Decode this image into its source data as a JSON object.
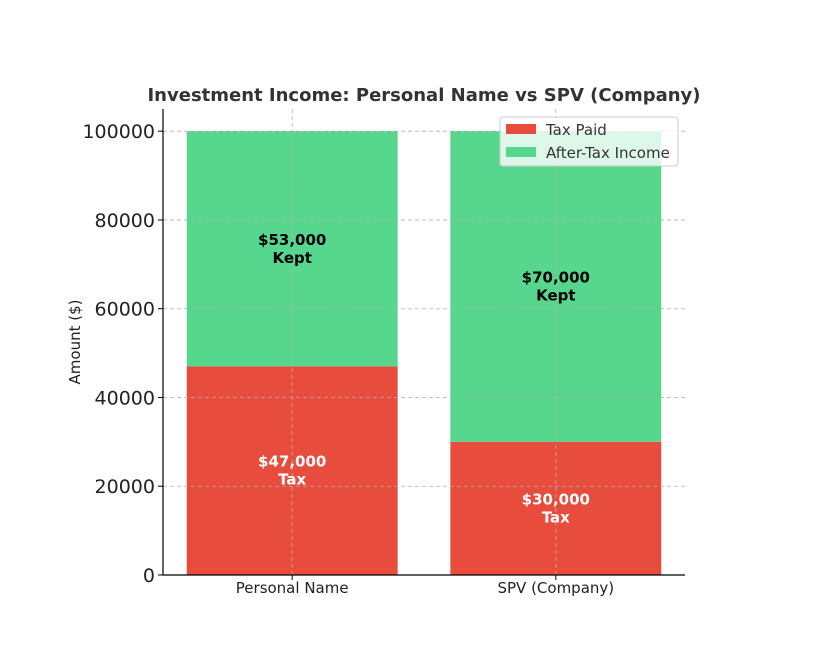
{
  "chart_data": {
    "type": "bar",
    "stacked": true,
    "title": "Investment Income: Personal Name vs SPV (Company)",
    "xlabel": "",
    "ylabel": "Amount ($)",
    "categories": [
      "Personal Name",
      "SPV (Company)"
    ],
    "series": [
      {
        "name": "Tax Paid",
        "color": "#e74c3c",
        "values": [
          47000,
          30000
        ],
        "labels": [
          [
            "$47,000",
            "Tax"
          ],
          [
            "$30,000",
            "Tax"
          ]
        ],
        "label_color": "#ffffff"
      },
      {
        "name": "After-Tax Income",
        "color": "#57d68d",
        "values": [
          53000,
          70000
        ],
        "labels": [
          [
            "$53,000",
            "Kept"
          ],
          [
            "$70,000",
            "Kept"
          ]
        ],
        "label_color": "#000000"
      }
    ],
    "ylim": [
      0,
      105000
    ],
    "yticks": [
      0,
      20000,
      40000,
      60000,
      80000,
      100000
    ],
    "ytick_labels": [
      "0",
      "20000",
      "40000",
      "60000",
      "80000",
      "100000"
    ],
    "grid": true,
    "legend_position": "top-right"
  }
}
